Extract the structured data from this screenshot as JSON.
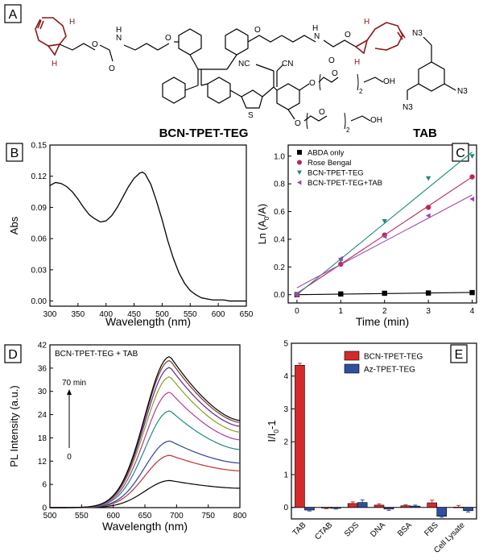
{
  "panel_a": {
    "letter": "A",
    "compound_left": "BCN-TPET-TEG",
    "compound_right": "TAB",
    "atoms": {
      "H": "H",
      "N": "N",
      "O": "O",
      "S": "S",
      "OH": "OH",
      "CN": "CN",
      "NC": "NC",
      "N3": "N3",
      "sub2": "2"
    }
  },
  "colors": {
    "red": "#d42a2a",
    "blue": "#2f4fa0",
    "teal": "#1e8a80",
    "crimson": "#c0245a",
    "purple": "#9a48b0",
    "black": "#000000",
    "bcn": "#8b1a1a"
  },
  "chart_data": [
    {
      "panel": "B",
      "type": "line",
      "xlabel": "Wavelength (nm)",
      "ylabel": "Abs",
      "xlim": [
        300,
        650
      ],
      "ylim": [
        -0.005,
        0.15
      ],
      "xticks": [
        300,
        350,
        400,
        450,
        500,
        550,
        600,
        650
      ],
      "yticks": [
        0.0,
        0.03,
        0.06,
        0.09,
        0.12,
        0.15
      ],
      "ytick_labels": [
        "0.00",
        "0.03",
        "0.06",
        "0.09",
        "0.12",
        "0.15"
      ],
      "series": [
        {
          "x": [
            300,
            310,
            320,
            330,
            340,
            350,
            360,
            370,
            380,
            390,
            400,
            410,
            420,
            430,
            440,
            450,
            460,
            465,
            470,
            480,
            490,
            500,
            510,
            520,
            530,
            540,
            550,
            560,
            570,
            580,
            590,
            600,
            610,
            620,
            630,
            640,
            650
          ],
          "y": [
            0.111,
            0.114,
            0.113,
            0.11,
            0.105,
            0.098,
            0.09,
            0.083,
            0.079,
            0.076,
            0.077,
            0.082,
            0.09,
            0.1,
            0.11,
            0.118,
            0.123,
            0.124,
            0.122,
            0.112,
            0.096,
            0.078,
            0.058,
            0.041,
            0.027,
            0.017,
            0.01,
            0.006,
            0.003,
            0.002,
            0.001,
            0.001,
            0.001,
            0.0,
            0.0,
            0.0,
            0.0
          ]
        }
      ]
    },
    {
      "panel": "C",
      "type": "scatter",
      "xlabel": "Time (min)",
      "ylabel": "Ln (A",
      "ylabel_sub": "0",
      "ylabel_tail": "/A)",
      "xlim": [
        -0.2,
        4.1
      ],
      "ylim": [
        -0.06,
        1.08
      ],
      "xticks": [
        0,
        1,
        2,
        3,
        4
      ],
      "yticks": [
        0.0,
        0.2,
        0.4,
        0.6,
        0.8,
        1.0
      ],
      "ytick_labels": [
        "0.0",
        "0.2",
        "0.4",
        "0.6",
        "0.8",
        "1.0"
      ],
      "legend_position": "top-left",
      "series": [
        {
          "name": "ABDA only",
          "marker": "square",
          "color": "#000000",
          "x": [
            0,
            1,
            2,
            3,
            4
          ],
          "y": [
            0.0,
            0.005,
            0.01,
            0.012,
            0.015
          ],
          "fit": [
            [
              0,
              0.0
            ],
            [
              4,
              0.016
            ]
          ]
        },
        {
          "name": "Rose Bengal",
          "marker": "circle",
          "color": "#c0245a",
          "x": [
            0,
            1,
            2,
            3,
            4
          ],
          "y": [
            0.0,
            0.22,
            0.43,
            0.63,
            0.85
          ],
          "fit": [
            [
              0,
              0.01
            ],
            [
              4,
              0.85
            ]
          ]
        },
        {
          "name": "BCN-TPET-TEG",
          "marker": "triangle-down",
          "color": "#1e8a80",
          "x": [
            0,
            1,
            2,
            3,
            4
          ],
          "y": [
            0.0,
            0.25,
            0.53,
            0.84,
            1.0
          ],
          "fit": [
            [
              0,
              0.0
            ],
            [
              4,
              1.03
            ]
          ]
        },
        {
          "name": "BCN-TPET-TEG+TAB",
          "marker": "triangle-left",
          "color": "#9a48b0",
          "x": [
            0,
            1,
            2,
            3,
            4
          ],
          "y": [
            0.0,
            0.26,
            0.42,
            0.57,
            0.69
          ],
          "fit": [
            [
              0,
              0.05
            ],
            [
              4,
              0.72
            ]
          ]
        }
      ]
    },
    {
      "panel": "D",
      "type": "line",
      "title": "BCN-TPET-TEG + TAB",
      "annotation_top": "70 min",
      "annotation_bottom": "0",
      "xlabel": "Wavelength (nm)",
      "ylabel": "PL Intensity (a.u.)",
      "xlim": [
        500,
        800
      ],
      "ylim": [
        0,
        42
      ],
      "xticks": [
        500,
        550,
        600,
        650,
        700,
        750,
        800
      ],
      "yticks": [
        0,
        6,
        12,
        18,
        24,
        30,
        36,
        42
      ],
      "peak_nm": 690,
      "series": [
        {
          "color": "#000000",
          "peak": 7.0,
          "end": 5.0
        },
        {
          "color": "#c03030",
          "peak": 13.5,
          "end": 9.5
        },
        {
          "color": "#2f3f9e",
          "peak": 17.2,
          "end": 11.5
        },
        {
          "color": "#1e8a80",
          "peak": 25.0,
          "end": 15.0
        },
        {
          "color": "#b03aa0",
          "peak": 29.8,
          "end": 17.5
        },
        {
          "color": "#8aa020",
          "peak": 33.8,
          "end": 19.5
        },
        {
          "color": "#5a2a9a",
          "peak": 36.2,
          "end": 21.0
        },
        {
          "color": "#7a3a2a",
          "peak": 38.0,
          "end": 22.0
        },
        {
          "color": "#000000",
          "peak": 39.0,
          "end": 22.5
        }
      ]
    },
    {
      "panel": "E",
      "type": "bar",
      "ylabel": "I/I",
      "ylabel_sub": "0",
      "ylabel_tail": "-1",
      "ylim": [
        -0.35,
        5
      ],
      "yticks": [
        0,
        1,
        2,
        3,
        4,
        5
      ],
      "legend_position": "top-right",
      "categories": [
        "TAB",
        "CTAB",
        "SDS",
        "DNA",
        "BSA",
        "FBS",
        "Cell Lysate"
      ],
      "series": [
        {
          "name": "BCN-TPET-TEG",
          "color": "#d42a2a",
          "values": [
            4.33,
            -0.02,
            0.12,
            0.07,
            0.05,
            0.14,
            0.01
          ],
          "errors": [
            0.06,
            0.02,
            0.05,
            0.04,
            0.03,
            0.08,
            0.05
          ]
        },
        {
          "name": "Az-TPET-TEG",
          "color": "#2f4fa0",
          "values": [
            -0.08,
            -0.03,
            0.15,
            -0.05,
            0.04,
            -0.27,
            -0.1
          ],
          "errors": [
            0.03,
            0.02,
            0.08,
            0.04,
            0.03,
            0.03,
            0.04
          ]
        }
      ]
    }
  ],
  "panel_letters": [
    "B",
    "C",
    "D",
    "E"
  ]
}
